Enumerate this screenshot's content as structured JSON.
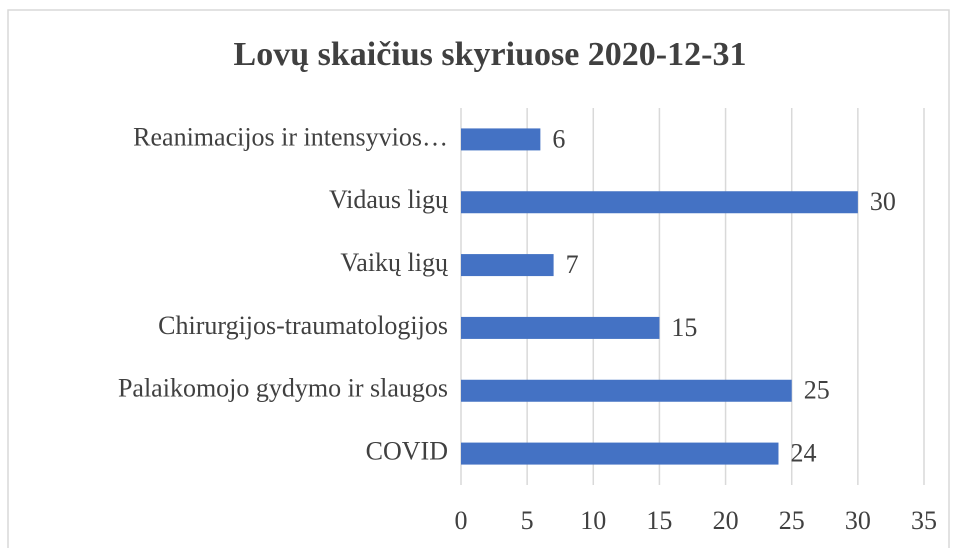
{
  "chart_data": {
    "type": "bar",
    "orientation": "horizontal",
    "title": "Lovų skaičius skyriuose 2020-12-31",
    "categories": [
      "Reanimacijos ir intensyvios…",
      "Vidaus ligų",
      "Vaikų ligų",
      "Chirurgijos-traumatologijos",
      "Palaikomojo gydymo ir slaugos",
      "COVID"
    ],
    "values": [
      6,
      30,
      7,
      15,
      25,
      24
    ],
    "color": "#4472c4",
    "xlim": [
      0,
      35
    ],
    "xticks": [
      0,
      5,
      10,
      15,
      20,
      25,
      30,
      35
    ],
    "grid": true
  }
}
